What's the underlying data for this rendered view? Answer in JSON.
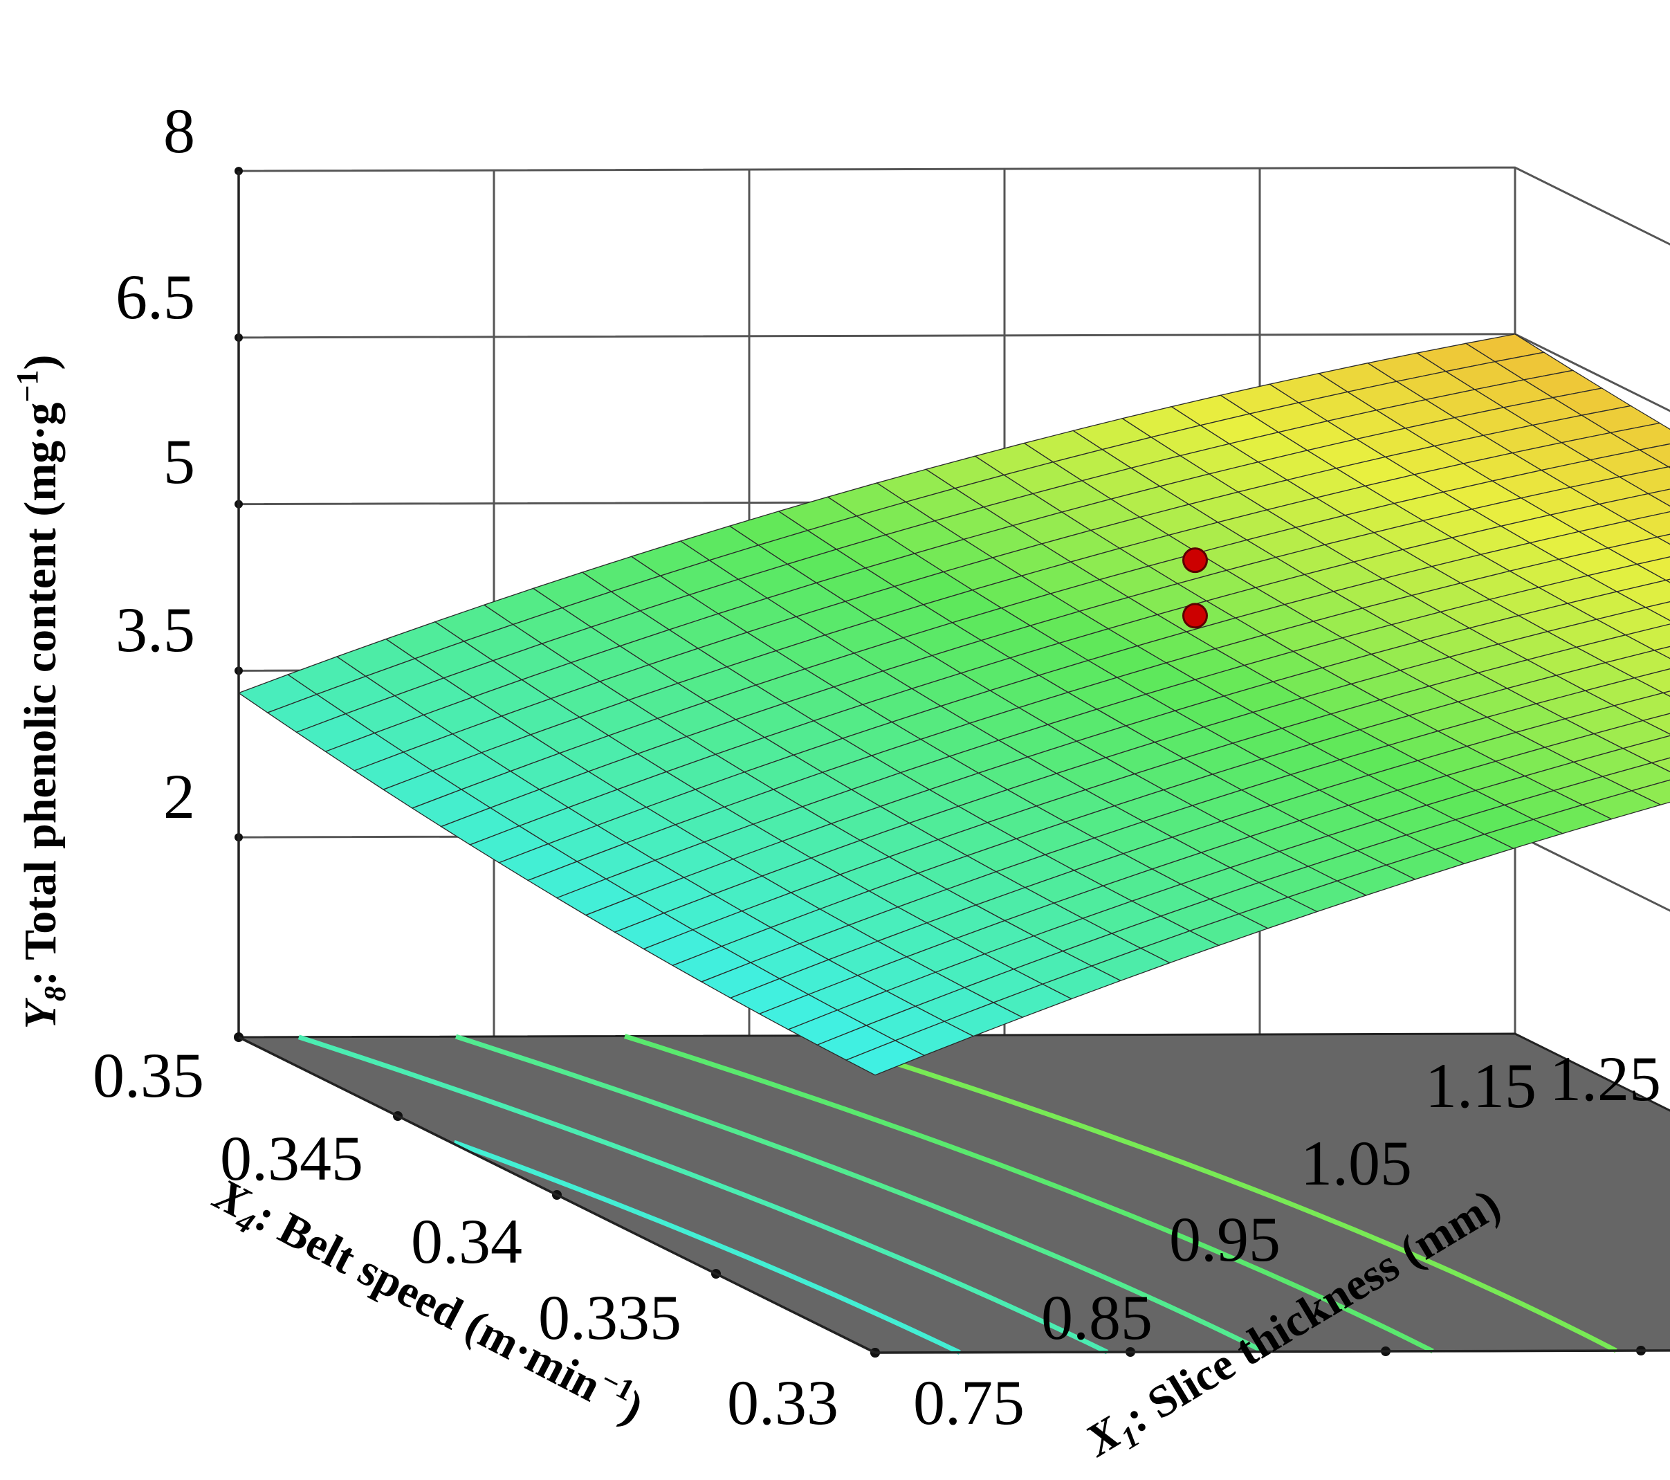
{
  "chart_data": {
    "type": "surface3d",
    "z_axis": {
      "label_main": "Total phenolic content (mg·g",
      "label_var": "Y",
      "label_sub": "8",
      "label_sup": "−1",
      "label_close": ")",
      "ticks": [
        "2",
        "3.5",
        "5",
        "6.5",
        "8"
      ],
      "range": [
        2,
        8
      ]
    },
    "x1_axis": {
      "label_var": "X",
      "label_sub": "1",
      "label_main": ": Slice thickness (mm)",
      "ticks": [
        "0.75",
        "0.85",
        "0.95",
        "1.05",
        "1.15",
        "1.25"
      ],
      "range": [
        0.75,
        1.25
      ]
    },
    "x4_axis": {
      "label_var": "X",
      "label_sub": "4",
      "label_main": ": Belt speed (m·min",
      "label_sup": "−1",
      "label_close": ")",
      "ticks": [
        "0.35",
        "0.345",
        "0.34",
        "0.335",
        "0.33"
      ],
      "range": [
        0.33,
        0.35
      ]
    },
    "surface_corners": [
      {
        "slice_thickness": 0.75,
        "belt_speed": 0.35,
        "y": 3.3
      },
      {
        "slice_thickness": 0.75,
        "belt_speed": 0.33,
        "y": 2.7
      },
      {
        "slice_thickness": 1.25,
        "belt_speed": 0.33,
        "y": 6.2
      },
      {
        "slice_thickness": 1.25,
        "belt_speed": 0.35,
        "y": 6.5
      }
    ],
    "design_points": [
      {
        "slice_thickness": 1.0,
        "belt_speed": 0.34,
        "y": 5.9
      },
      {
        "slice_thickness": 1.0,
        "belt_speed": 0.34,
        "y": 5.4
      }
    ],
    "contour_levels": [
      3.0,
      3.5,
      4.0,
      4.5,
      5.0
    ],
    "colors": {
      "floor": "#666666",
      "low": "#3ff0e8",
      "mid": "#e8f040",
      "high": "#f4a030",
      "point": "#cc0000"
    }
  }
}
